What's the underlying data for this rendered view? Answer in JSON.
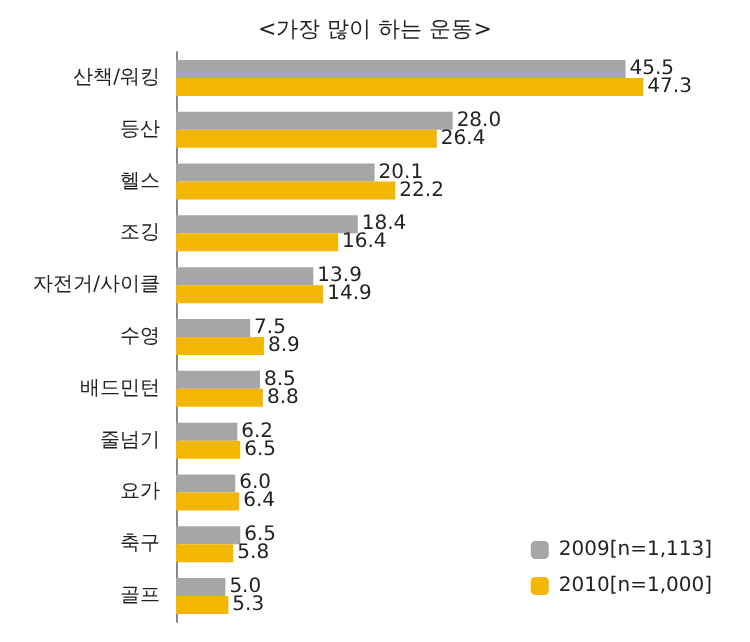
{
  "chart_data": {
    "type": "bar",
    "orientation": "horizontal",
    "title": "<가장 많이 하는 운동>",
    "categories": [
      "산책/워킹",
      "등산",
      "헬스",
      "조깅",
      "자전거/사이클",
      "수영",
      "배드민턴",
      "줄넘기",
      "요가",
      "축구",
      "골프"
    ],
    "series": [
      {
        "name": "2009[n=1,113]",
        "color": "#a6a6a6",
        "values": [
          45.5,
          28.0,
          20.1,
          18.4,
          13.9,
          7.5,
          8.5,
          6.2,
          6.0,
          6.5,
          5.0
        ],
        "value_labels": [
          "45.5",
          "28.0",
          "20.1",
          "18.4",
          "13.9",
          "7.5",
          "8.5",
          "6.2",
          "6.0",
          "6.5",
          "5.0"
        ]
      },
      {
        "name": "2010[n=1,000]",
        "color": "#f2b705",
        "values": [
          47.3,
          26.4,
          22.2,
          16.4,
          14.9,
          8.9,
          8.8,
          6.5,
          6.4,
          5.8,
          5.3
        ],
        "value_labels": [
          "47.3",
          "26.4",
          "22.2",
          "16.4",
          "14.9",
          "8.9",
          "8.8",
          "6.5",
          "6.4",
          "5.8",
          "5.3"
        ]
      }
    ],
    "legend": "bottom right"
  }
}
